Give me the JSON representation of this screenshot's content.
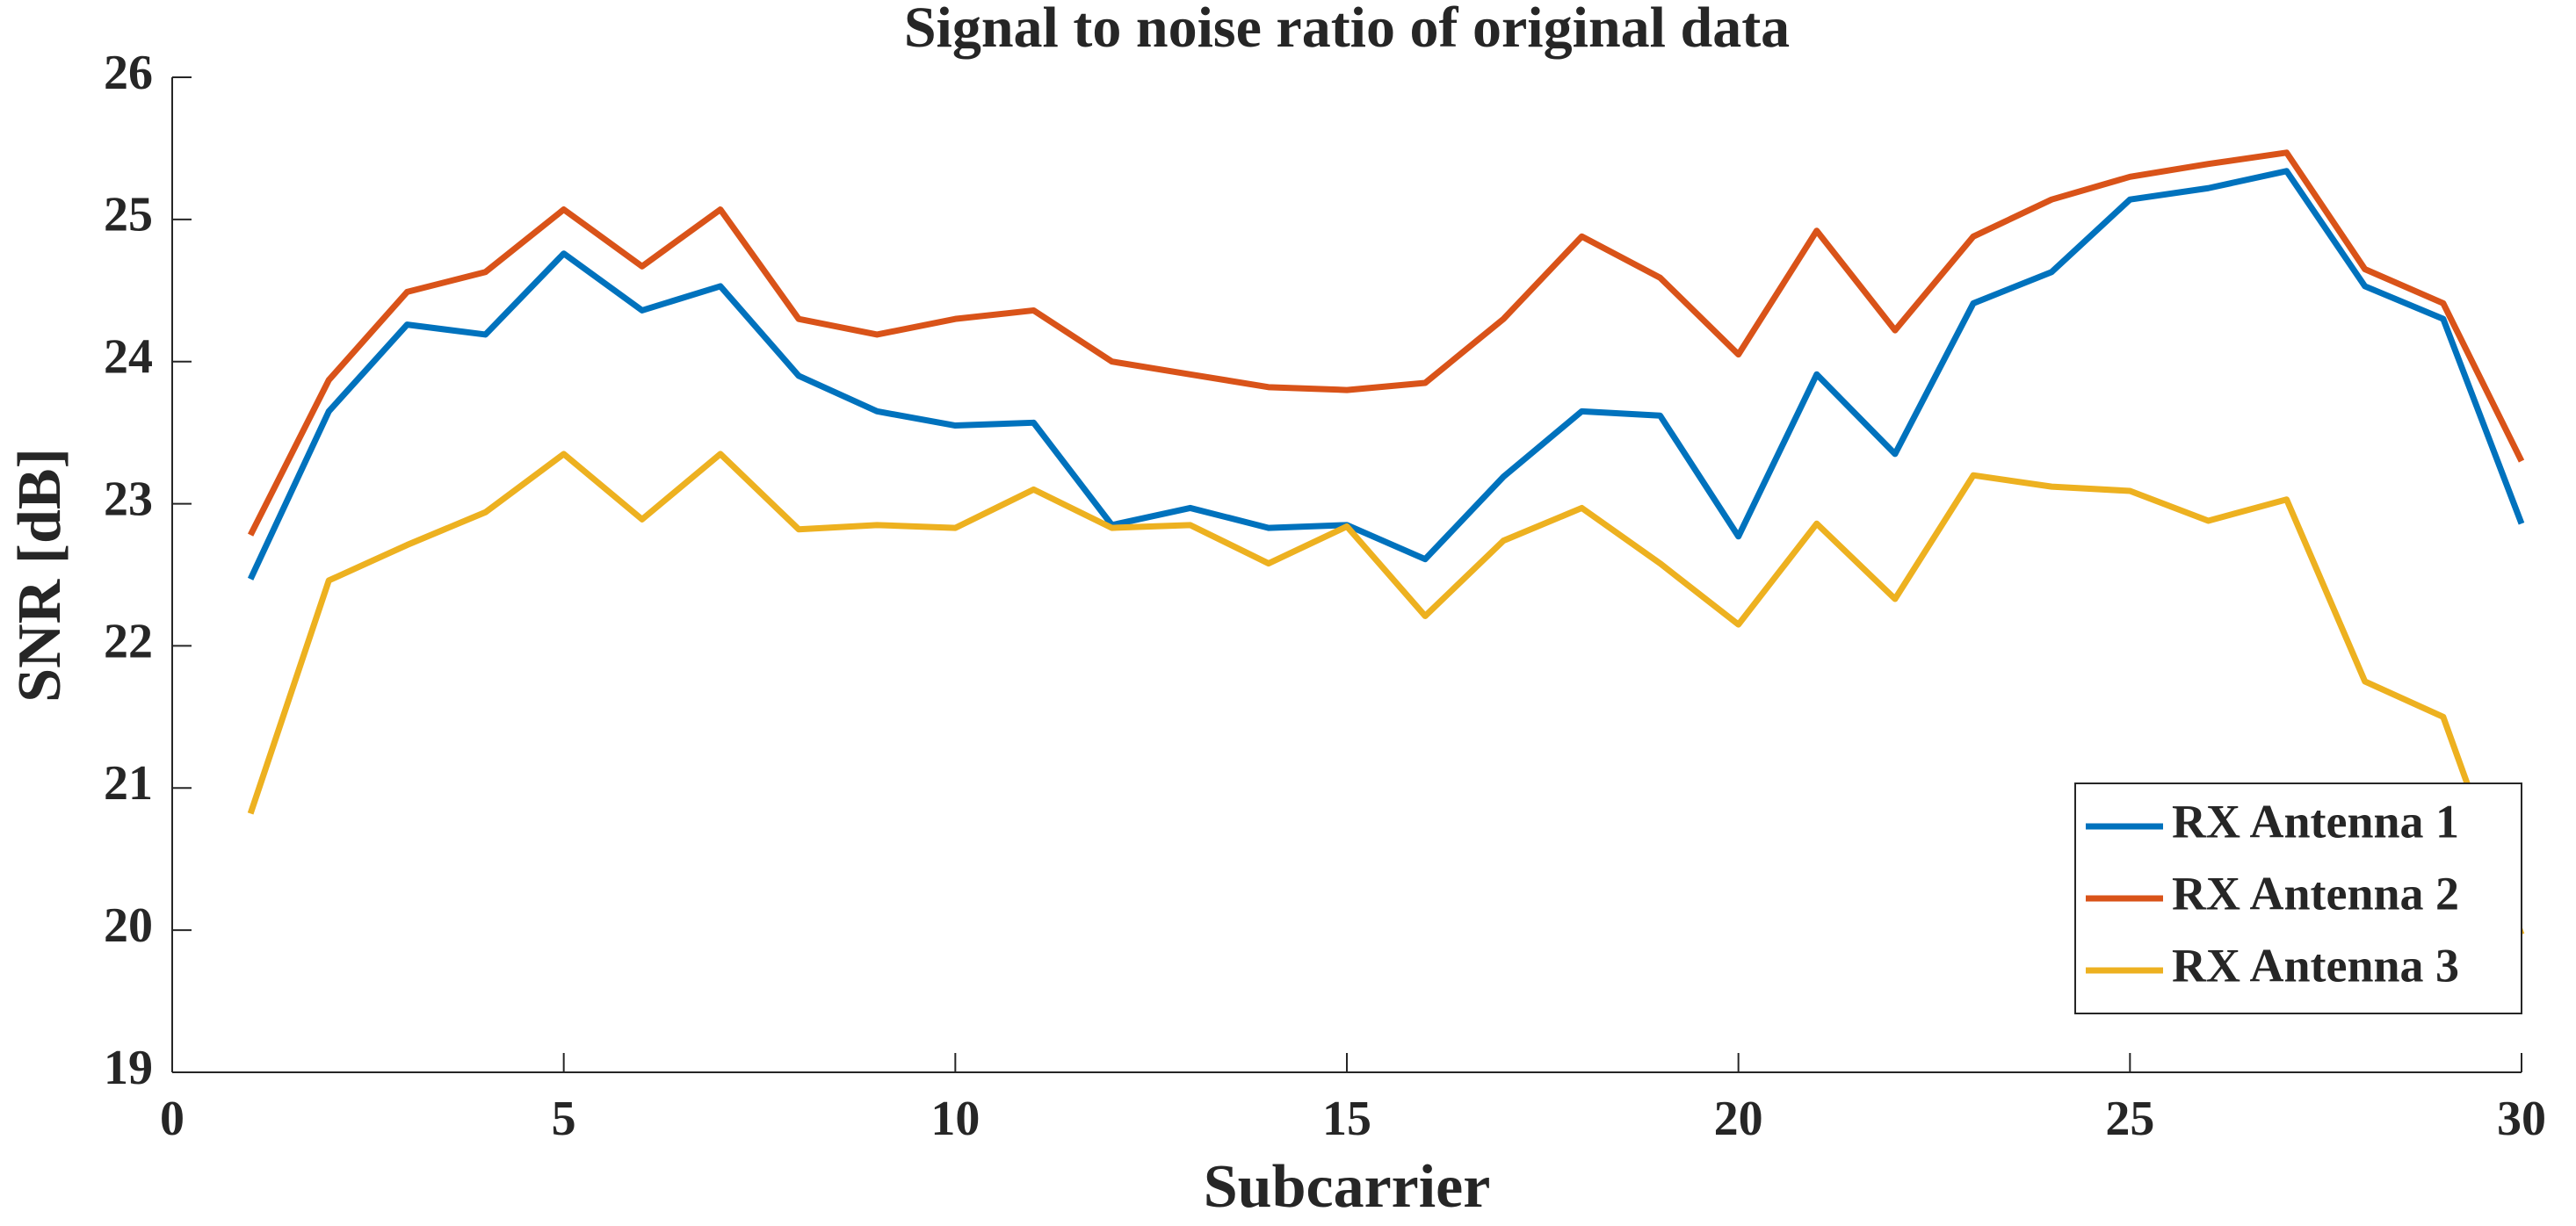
{
  "chart_data": {
    "type": "line",
    "title": "Signal to noise ratio of original data",
    "x_label": "Subcarrier",
    "y_label": "SNR [dB]",
    "x": [
      1,
      2,
      3,
      4,
      5,
      6,
      7,
      8,
      9,
      10,
      11,
      12,
      13,
      14,
      15,
      16,
      17,
      18,
      19,
      20,
      21,
      22,
      23,
      24,
      25,
      26,
      27,
      28,
      29,
      30
    ],
    "series": [
      {
        "name": "RX Antenna 1",
        "color": "#0072bd",
        "values": [
          22.47,
          23.65,
          24.26,
          24.19,
          24.76,
          24.36,
          24.53,
          23.9,
          23.65,
          23.55,
          23.57,
          22.85,
          22.97,
          22.83,
          22.85,
          22.61,
          23.19,
          23.65,
          23.62,
          22.77,
          23.91,
          23.35,
          24.41,
          24.63,
          25.14,
          25.22,
          25.34,
          24.53,
          24.3,
          22.86
        ]
      },
      {
        "name": "RX Antenna 2",
        "color": "#d95319",
        "values": [
          22.78,
          23.87,
          24.49,
          24.63,
          25.07,
          24.67,
          25.07,
          24.3,
          24.19,
          24.3,
          24.36,
          24.0,
          23.91,
          23.82,
          23.8,
          23.85,
          24.3,
          24.88,
          24.59,
          24.05,
          24.92,
          24.22,
          24.88,
          25.14,
          25.3,
          25.39,
          25.47,
          24.65,
          24.41,
          23.3
        ]
      },
      {
        "name": "RX Antenna 3",
        "color": "#edb120",
        "values": [
          20.82,
          22.46,
          22.71,
          22.94,
          23.35,
          22.89,
          23.35,
          22.82,
          22.85,
          22.83,
          23.1,
          22.83,
          22.85,
          22.58,
          22.84,
          22.21,
          22.74,
          22.97,
          22.58,
          22.15,
          22.86,
          22.33,
          23.2,
          23.12,
          23.09,
          22.88,
          23.03,
          21.75,
          21.5,
          19.97
        ]
      }
    ],
    "xlim": [
      0,
      30
    ],
    "xticks": [
      0,
      5,
      10,
      15,
      20,
      25,
      30
    ],
    "ylim": [
      19,
      26
    ],
    "yticks": [
      19,
      20,
      21,
      22,
      23,
      24,
      25,
      26
    ],
    "legend": "bottom-right"
  }
}
